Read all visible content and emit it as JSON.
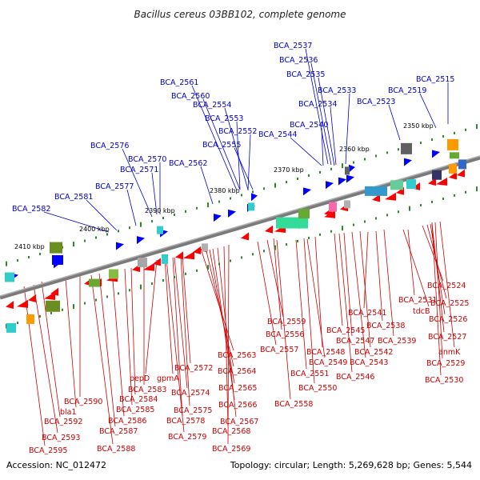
{
  "title": "Bacillus cereus 03BB102, complete genome",
  "footer": {
    "accession": "Accession: NC_012472",
    "topology": "Topology: circular; Length: 5,269,628 bp; Genes: 5,544"
  },
  "colors": {
    "forward": "#0000ff",
    "reverse": "#ff0000",
    "backbone": "#888888",
    "tick": "#2a8a2a"
  },
  "kbp_labels": [
    "2350 kbp",
    "2360 kbp",
    "2370 kbp",
    "2380 kbp",
    "2390 kbp",
    "2400 kbp",
    "2410 kbp"
  ],
  "top_labels": [
    "BCA_2537",
    "BCA_2536",
    "BCA_2535",
    "BCA_2533",
    "BCA_2534",
    "BCA_2515",
    "BCA_2519",
    "BCA_2523",
    "BCA_2561",
    "BCA_2560",
    "BCA_2554",
    "BCA_2553",
    "BCA_2552",
    "BCA_2540",
    "BCA_2544",
    "BCA_2555",
    "BCA_2576",
    "BCA_2570",
    "BCA_2571",
    "BCA_2562",
    "BCA_2577",
    "BCA_2581",
    "BCA_2582"
  ],
  "bottom_labels": [
    "BCA_2524",
    "BCA_2531",
    "tdcB",
    "BCA_2525",
    "BCA_2526",
    "BCA_2541",
    "BCA_2538",
    "BCA_2527",
    "BCA_2559",
    "BCA_2556",
    "BCA_2545",
    "BCA_2547",
    "BCA_2539",
    "anmK",
    "BCA_2557",
    "BCA_2548",
    "BCA_2542",
    "BCA_2563",
    "BCA_2549",
    "BCA_2543",
    "BCA_2529",
    "BCA_2572",
    "BCA_2564",
    "BCA_2551",
    "BCA_2546",
    "BCA_2530",
    "pepD",
    "gpmA",
    "BCA_2550",
    "BCA_2583",
    "BCA_2565",
    "BCA_2574",
    "BCA_2584",
    "BCA_2590",
    "BCA_2558",
    "BCA_2585",
    "BCA_2575",
    "BCA_2566",
    "bla1",
    "BCA_2586",
    "BCA_2578",
    "BCA_2567",
    "BCA_2592",
    "BCA_2587",
    "BCA_2568",
    "BCA_2579",
    "BCA_2593",
    "BCA_2569",
    "BCA_2588",
    "BCA_2595"
  ]
}
